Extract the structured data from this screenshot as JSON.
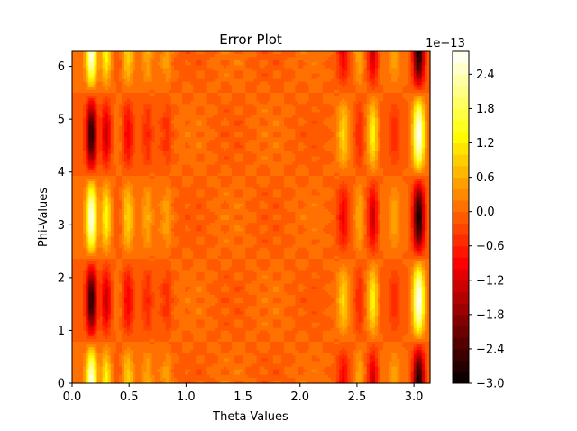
{
  "chart_data": {
    "type": "heatmap",
    "subtype": "filled-contour",
    "title": "Error Plot",
    "xlabel": "Theta-Values",
    "ylabel": "Phi-Values",
    "xlim": [
      0,
      3.1416
    ],
    "ylim": [
      0,
      6.2832
    ],
    "x_ticks": [
      0.0,
      0.5,
      1.0,
      1.5,
      2.0,
      2.5,
      3.0
    ],
    "x_tick_labels": [
      "0.0",
      "0.5",
      "1.0",
      "1.5",
      "2.0",
      "2.5",
      "3.0"
    ],
    "y_ticks": [
      0,
      1,
      2,
      3,
      4,
      5,
      6
    ],
    "y_tick_labels": [
      "0",
      "1",
      "2",
      "3",
      "4",
      "5",
      "6"
    ],
    "colormap": "hot",
    "colorbar": {
      "range": [
        -3.0,
        2.8
      ],
      "offset_label": "1e−13",
      "ticks": [
        -3.0,
        -2.4,
        -1.8,
        -1.2,
        -0.6,
        0.0,
        0.6,
        1.2,
        1.8,
        2.4
      ],
      "tick_labels": [
        "−3.0",
        "−2.4",
        "−1.8",
        "−1.2",
        "−0.6",
        "0.0",
        "0.6",
        "1.2",
        "1.8",
        "2.4"
      ],
      "levels": 29
    },
    "stripe_columns": [
      {
        "theta": 0.17,
        "amp": 2.7
      },
      {
        "theta": 0.3,
        "amp": 1.4
      },
      {
        "theta": 0.49,
        "amp": 1.0
      },
      {
        "theta": 0.66,
        "amp": 0.45
      },
      {
        "theta": 0.83,
        "amp": 0.45
      },
      {
        "theta": 2.38,
        "amp": -0.9
      },
      {
        "theta": 2.52,
        "amp": 0.7
      },
      {
        "theta": 2.64,
        "amp": -1.3
      },
      {
        "theta": 2.83,
        "amp": 0.4
      },
      {
        "theta": 3.04,
        "amp": -2.9
      }
    ],
    "phi_pattern": "cos(2*phi)"
  }
}
